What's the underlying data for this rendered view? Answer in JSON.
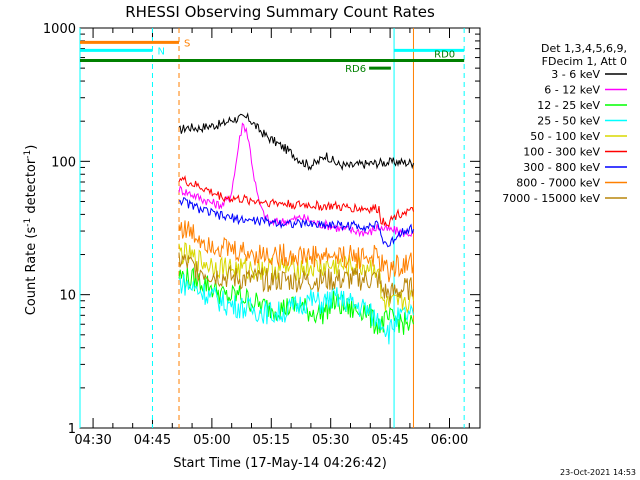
{
  "chart_data": {
    "type": "line",
    "title": "RHESSI Observing Summary Count Rates",
    "xlabel": "Start Time (17-May-14 04:26:42)",
    "ylabel_main": "Count Rate (s",
    "ylabel_sup1": "-1",
    "ylabel_mid": " detector",
    "ylabel_sup2": "-1",
    "ylabel_end": ")",
    "y_scale": "log",
    "ylim": [
      1,
      1000
    ],
    "xlim_minutes": [
      0,
      101
    ],
    "x_ticks": [
      {
        "label": "04:30",
        "minute": 3.3
      },
      {
        "label": "04:45",
        "minute": 18.3
      },
      {
        "label": "05:00",
        "minute": 33.3
      },
      {
        "label": "05:15",
        "minute": 48.3
      },
      {
        "label": "05:30",
        "minute": 63.3
      },
      {
        "label": "05:45",
        "minute": 78.3
      },
      {
        "label": "06:00",
        "minute": 93.3
      }
    ],
    "y_ticks": [
      {
        "label": "1",
        "value": 1
      },
      {
        "label": "10",
        "value": 10
      },
      {
        "label": "100",
        "value": 100
      },
      {
        "label": "1000",
        "value": 1000
      }
    ],
    "legend_title": [
      "Det 1,3,4,5,6,9,",
      "FDecim 1, Att 0"
    ],
    "legend_position": "right",
    "series": [
      {
        "name": "3 - 6 keV",
        "color": "#000000",
        "x": [
          25,
          27,
          30,
          33,
          36,
          38,
          40,
          42,
          43,
          45,
          47,
          50,
          53,
          56,
          58,
          60,
          62,
          65,
          68,
          70,
          73,
          75,
          77,
          80,
          82,
          84.2
        ],
        "y": [
          170,
          180,
          178,
          185,
          190,
          205,
          210,
          212,
          205,
          175,
          155,
          135,
          118,
          100,
          93,
          98,
          112,
          95,
          92,
          94,
          96,
          97,
          98,
          99,
          98,
          97
        ]
      },
      {
        "name": "6 - 12 keV",
        "color": "#ff00ff",
        "x": [
          25,
          28,
          31,
          34,
          36,
          38,
          39,
          40,
          41,
          42,
          43,
          44,
          45,
          46,
          47,
          48,
          50,
          53,
          56,
          60,
          63,
          66,
          70,
          73,
          75,
          77,
          80,
          82,
          84.2
        ],
        "y": [
          62,
          57,
          52,
          48,
          47,
          55,
          80,
          130,
          190,
          175,
          120,
          75,
          52,
          42,
          38,
          35,
          35,
          36,
          38,
          34,
          33,
          31,
          30,
          29,
          32,
          31,
          30,
          29,
          29
        ]
      },
      {
        "name": "12 - 25 keV",
        "color": "#00ff00",
        "x": [
          25,
          28,
          31,
          34,
          37,
          40,
          43,
          46,
          49,
          52,
          55,
          58,
          61,
          64,
          66,
          68,
          70,
          72,
          74,
          76,
          78,
          80,
          82,
          84.2
        ],
        "y": [
          14,
          13,
          12.5,
          11,
          9.5,
          10,
          9,
          8.2,
          7.8,
          8,
          8.3,
          7.5,
          7.2,
          8.8,
          8.2,
          7.8,
          7.5,
          8,
          6.2,
          6,
          6.5,
          6.5,
          6,
          6
        ]
      },
      {
        "name": "25 - 50 keV",
        "color": "#00ffff",
        "x": [
          25,
          28,
          31,
          34,
          37,
          40,
          43,
          46,
          49,
          52,
          55,
          58,
          61,
          64,
          66,
          68,
          70,
          72,
          74,
          76,
          78,
          80,
          82,
          84.2
        ],
        "y": [
          12.5,
          11.5,
          10.5,
          9.5,
          8.5,
          8.2,
          7.8,
          7.5,
          7.2,
          7.5,
          8.3,
          9.2,
          8.6,
          9.5,
          9.2,
          8.7,
          8.2,
          8,
          6.8,
          6.5,
          5.2,
          6.5,
          7,
          7
        ]
      },
      {
        "name": "50 - 100 keV",
        "color": "#d8d800",
        "x": [
          25,
          28,
          31,
          34,
          37,
          40,
          43,
          46,
          49,
          52,
          55,
          58,
          61,
          64,
          66,
          68,
          70,
          72,
          74,
          75.5,
          76,
          78,
          80,
          82,
          84.2
        ],
        "y": [
          21,
          19,
          17.5,
          16.5,
          16,
          15.5,
          15.5,
          15.8,
          15.7,
          15.8,
          15.8,
          16,
          16,
          16.2,
          16.2,
          16.3,
          16.5,
          16,
          16,
          16,
          9,
          8,
          8.5,
          9,
          9
        ]
      },
      {
        "name": "100 - 300 keV",
        "color": "#ff0000",
        "x": [
          25,
          28,
          31,
          34,
          37,
          40,
          43,
          46,
          49,
          52,
          55,
          58,
          61,
          64,
          66,
          68,
          70,
          72,
          74,
          75.5,
          76,
          78,
          80,
          82,
          84.2
        ],
        "y": [
          75,
          68,
          63,
          57,
          53,
          52,
          51,
          50,
          49,
          48,
          47,
          47,
          46,
          46,
          45,
          45,
          44.5,
          44,
          44,
          44,
          36,
          35,
          40,
          42,
          42
        ]
      },
      {
        "name": "300 - 800 keV",
        "color": "#0000ff",
        "x": [
          25,
          28,
          31,
          34,
          37,
          40,
          43,
          46,
          49,
          52,
          55,
          58,
          61,
          64,
          66,
          68,
          70,
          72,
          74,
          75.5,
          76,
          78,
          80,
          82,
          84.2
        ],
        "y": [
          52,
          47,
          43,
          40,
          38,
          37,
          36,
          35.5,
          35,
          34.5,
          34,
          34,
          33.5,
          33.5,
          33,
          33,
          33,
          32.5,
          33,
          33,
          27,
          23,
          28,
          31,
          31
        ]
      },
      {
        "name": "800 - 7000 keV",
        "color": "#ff8000",
        "x": [
          25,
          28,
          31,
          34,
          37,
          40,
          43,
          46,
          49,
          52,
          55,
          58,
          61,
          64,
          66,
          68,
          70,
          72,
          74,
          75.5,
          76,
          78,
          80,
          82,
          84.2
        ],
        "y": [
          33,
          29,
          26,
          24,
          22,
          21,
          20.5,
          20,
          19.8,
          19.6,
          19.5,
          19.5,
          19.4,
          19.4,
          19.3,
          19.3,
          19.2,
          19.3,
          19.2,
          19.2,
          16.5,
          15,
          16.5,
          17,
          17
        ]
      },
      {
        "name": "7000 - 15000 keV",
        "color": "#b8860b",
        "x": [
          25,
          28,
          31,
          34,
          37,
          40,
          43,
          46,
          49,
          52,
          55,
          58,
          61,
          64,
          66,
          68,
          70,
          72,
          74,
          75.5,
          76,
          78,
          80,
          82,
          84.2
        ],
        "y": [
          18.5,
          16.5,
          15,
          14,
          13.5,
          13.2,
          13,
          13,
          12.8,
          12.8,
          12.7,
          12.8,
          12.8,
          12.9,
          12.9,
          13,
          13,
          13,
          13,
          13,
          11,
          10,
          10.5,
          11,
          11
        ]
      }
    ],
    "markers": [
      {
        "type": "vline",
        "minute": 0,
        "color": "#00ffff",
        "style": "solid"
      },
      {
        "type": "vline",
        "minute": 18.3,
        "color": "#00ffff",
        "style": "dashed"
      },
      {
        "type": "vline",
        "minute": 25,
        "color": "#ff8000",
        "style": "dashed"
      },
      {
        "type": "vline",
        "minute": 79.3,
        "color": "#00ffff",
        "style": "solid"
      },
      {
        "type": "vline",
        "minute": 84.2,
        "color": "#ff8000",
        "style": "solid"
      },
      {
        "type": "vline",
        "minute": 97,
        "color": "#00ffff",
        "style": "dashed"
      }
    ],
    "bars": [
      {
        "label": "S",
        "color": "#ff8000",
        "start": 0,
        "end": 25,
        "level": 780,
        "label_side": "right"
      },
      {
        "label": "N",
        "color": "#00ffff",
        "start": 0,
        "end": 18.3,
        "level": 680,
        "label_side": "right"
      },
      {
        "label": "",
        "color": "#00ffff",
        "start": 79.3,
        "end": 97,
        "level": 680,
        "label_side": "none"
      },
      {
        "label": "RD0",
        "color": "#008000",
        "start": 0,
        "end": 97,
        "level": 570,
        "label_side": "above-right"
      },
      {
        "label": "RD6",
        "color": "#008000",
        "start": 73,
        "end": 78.5,
        "level": 500,
        "label_side": "left"
      }
    ],
    "footer_date": "23-Oct-2021 14:53"
  }
}
